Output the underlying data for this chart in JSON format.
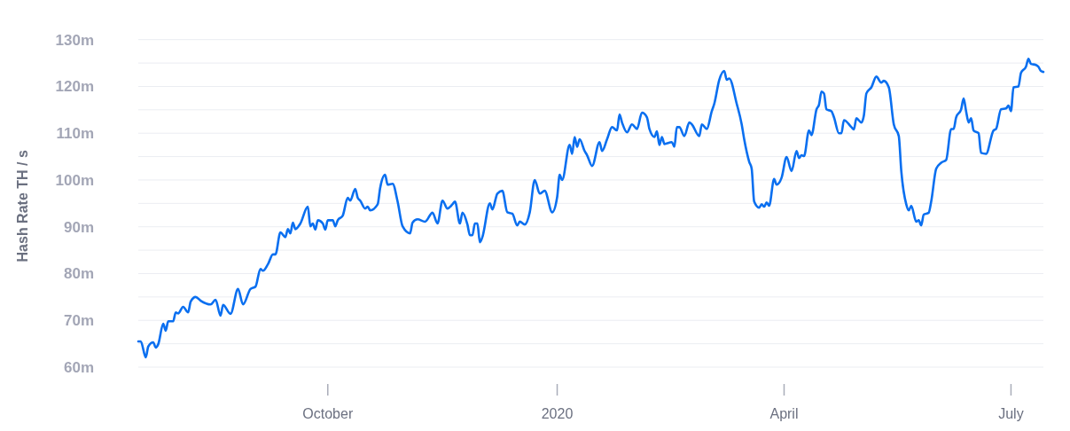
{
  "chart_data": {
    "type": "line",
    "ylabel": "Hash Rate TH / s",
    "grid": "y",
    "line_style": "solid",
    "xlim": [
      "2019-07-17",
      "2020-07-14"
    ],
    "xticks": [
      {
        "value": "2019-10-01",
        "label": "October"
      },
      {
        "value": "2020-01-01",
        "label": "2020"
      },
      {
        "value": "2020-04-01",
        "label": "April"
      },
      {
        "value": "2020-07-01",
        "label": "July"
      }
    ],
    "ylim": [
      60,
      130
    ],
    "yticks": [
      {
        "value": 60,
        "label": "60m"
      },
      {
        "value": 65,
        "label": null
      },
      {
        "value": 70,
        "label": "70m"
      },
      {
        "value": 75,
        "label": null
      },
      {
        "value": 80,
        "label": "80m"
      },
      {
        "value": 85,
        "label": null
      },
      {
        "value": 90,
        "label": "90m"
      },
      {
        "value": 95,
        "label": null
      },
      {
        "value": 100,
        "label": "100m"
      },
      {
        "value": 105,
        "label": null
      },
      {
        "value": 110,
        "label": "110m"
      },
      {
        "value": 115,
        "label": null
      },
      {
        "value": 120,
        "label": "120m"
      },
      {
        "value": 125,
        "label": null
      },
      {
        "value": 130,
        "label": "130m"
      }
    ],
    "x": [
      "2019-07-17",
      "2019-07-18",
      "2019-07-20",
      "2019-07-21",
      "2019-07-23",
      "2019-07-24",
      "2019-07-25",
      "2019-07-27",
      "2019-07-28",
      "2019-07-29",
      "2019-07-31",
      "2019-08-01",
      "2019-08-02",
      "2019-08-04",
      "2019-08-06",
      "2019-08-07",
      "2019-08-09",
      "2019-08-11",
      "2019-08-15",
      "2019-08-17",
      "2019-08-19",
      "2019-08-20",
      "2019-08-23",
      "2019-08-26",
      "2019-08-28",
      "2019-08-31",
      "2019-09-02",
      "2019-09-04",
      "2019-09-05",
      "2019-09-07",
      "2019-09-09",
      "2019-09-10",
      "2019-09-12",
      "2019-09-14",
      "2019-09-15",
      "2019-09-16",
      "2019-09-17",
      "2019-09-18",
      "2019-09-20",
      "2019-09-23",
      "2019-09-24",
      "2019-09-25",
      "2019-09-26",
      "2019-09-27",
      "2019-09-29",
      "2019-09-30",
      "2019-10-01",
      "2019-10-03",
      "2019-10-04",
      "2019-10-05",
      "2019-10-07",
      "2019-10-09",
      "2019-10-10",
      "2019-10-12",
      "2019-10-13",
      "2019-10-14",
      "2019-10-16",
      "2019-10-17",
      "2019-10-18",
      "2019-10-21",
      "2019-10-22",
      "2019-10-24",
      "2019-10-25",
      "2019-10-27",
      "2019-10-29",
      "2019-10-31",
      "2019-11-03",
      "2019-11-04",
      "2019-11-06",
      "2019-11-09",
      "2019-11-12",
      "2019-11-14",
      "2019-11-16",
      "2019-11-18",
      "2019-11-20",
      "2019-11-21",
      "2019-11-23",
      "2019-11-24",
      "2019-11-26",
      "2019-11-27",
      "2019-11-28",
      "2019-11-29",
      "2019-11-30",
      "2019-12-01",
      "2019-12-02",
      "2019-12-05",
      "2019-12-06",
      "2019-12-08",
      "2019-12-10",
      "2019-12-12",
      "2019-12-14",
      "2019-12-16",
      "2019-12-17",
      "2019-12-19",
      "2019-12-21",
      "2019-12-23",
      "2019-12-25",
      "2019-12-27",
      "2019-12-30",
      "2020-01-01",
      "2020-01-02",
      "2020-01-03",
      "2020-01-06",
      "2020-01-07",
      "2020-01-08",
      "2020-01-09",
      "2020-01-10",
      "2020-01-12",
      "2020-01-13",
      "2020-01-15",
      "2020-01-18",
      "2020-01-19",
      "2020-01-21",
      "2020-01-23",
      "2020-01-25",
      "2020-01-26",
      "2020-01-27",
      "2020-01-29",
      "2020-01-31",
      "2020-02-02",
      "2020-02-04",
      "2020-02-06",
      "2020-02-07",
      "2020-02-09",
      "2020-02-10",
      "2020-02-11",
      "2020-02-12",
      "2020-02-13",
      "2020-02-16",
      "2020-02-17",
      "2020-02-18",
      "2020-02-19",
      "2020-02-21",
      "2020-02-23",
      "2020-02-24",
      "2020-02-27",
      "2020-02-28",
      "2020-03-01",
      "2020-03-03",
      "2020-03-04",
      "2020-03-06",
      "2020-03-08",
      "2020-03-09",
      "2020-03-10",
      "2020-03-13",
      "2020-03-15",
      "2020-03-16",
      "2020-03-18",
      "2020-03-19",
      "2020-03-20",
      "2020-03-22",
      "2020-03-23",
      "2020-03-24",
      "2020-03-25",
      "2020-03-26",
      "2020-03-28",
      "2020-03-29",
      "2020-03-31",
      "2020-04-02",
      "2020-04-04",
      "2020-04-06",
      "2020-04-07",
      "2020-04-08",
      "2020-04-09",
      "2020-04-11",
      "2020-04-12",
      "2020-04-14",
      "2020-04-15",
      "2020-04-16",
      "2020-04-17",
      "2020-04-18",
      "2020-04-20",
      "2020-04-21",
      "2020-04-23",
      "2020-04-24",
      "2020-04-25",
      "2020-04-28",
      "2020-04-29",
      "2020-04-30",
      "2020-05-02",
      "2020-05-03",
      "2020-05-04",
      "2020-05-06",
      "2020-05-08",
      "2020-05-10",
      "2020-05-11",
      "2020-05-13",
      "2020-05-15",
      "2020-05-17",
      "2020-05-18",
      "2020-05-20",
      "2020-05-21",
      "2020-05-22",
      "2020-05-24",
      "2020-05-25",
      "2020-05-26",
      "2020-05-27",
      "2020-05-29",
      "2020-05-30",
      "2020-06-01",
      "2020-06-03",
      "2020-06-05",
      "2020-06-07",
      "2020-06-08",
      "2020-06-09",
      "2020-06-11",
      "2020-06-12",
      "2020-06-13",
      "2020-06-14",
      "2020-06-15",
      "2020-06-16",
      "2020-06-18",
      "2020-06-19",
      "2020-06-21",
      "2020-06-24",
      "2020-06-25",
      "2020-06-27",
      "2020-06-29",
      "2020-06-30",
      "2020-07-01",
      "2020-07-02",
      "2020-07-04",
      "2020-07-05",
      "2020-07-07",
      "2020-07-08",
      "2020-07-09",
      "2020-07-11",
      "2020-07-12",
      "2020-07-13",
      "2020-07-14"
    ],
    "series": [
      {
        "color": "#0a6ff0",
        "values": [
          65.5,
          65.5,
          62.1,
          64.4,
          65.3,
          64.2,
          64.9,
          69.3,
          67.8,
          69.8,
          69.8,
          71.7,
          71.5,
          72.9,
          71.7,
          74.0,
          75.0,
          74.2,
          73.4,
          74.4,
          71.0,
          73.3,
          71.4,
          76.7,
          73.4,
          76.7,
          77.2,
          81.0,
          80.6,
          82.0,
          84.1,
          84.1,
          88.8,
          87.8,
          89.5,
          88.6,
          90.9,
          89.5,
          90.7,
          94.3,
          90.1,
          90.7,
          89.4,
          91.4,
          90.7,
          89.4,
          91.4,
          91.4,
          90.1,
          91.4,
          92.4,
          96.2,
          95.6,
          98.1,
          96.2,
          95.6,
          93.9,
          94.3,
          93.5,
          94.8,
          98.3,
          101.1,
          99.0,
          99.2,
          95.4,
          90.1,
          88.6,
          90.9,
          91.6,
          91.1,
          93.0,
          90.7,
          95.6,
          93.9,
          94.8,
          95.4,
          90.7,
          93.0,
          90.5,
          88.2,
          88.2,
          90.7,
          90.7,
          86.7,
          87.8,
          95.0,
          93.7,
          97.1,
          97.7,
          93.1,
          92.8,
          90.3,
          91.1,
          90.5,
          93.1,
          100.0,
          97.1,
          97.7,
          93.1,
          96.4,
          101.1,
          100.0,
          107.5,
          105.6,
          109.2,
          107.1,
          108.7,
          106.2,
          105.3,
          103.0,
          108.1,
          106.2,
          108.7,
          111.3,
          110.6,
          114.0,
          112.3,
          110.2,
          111.9,
          110.9,
          114.4,
          113.4,
          110.9,
          109.2,
          110.4,
          107.5,
          109.2,
          107.7,
          108.1,
          107.1,
          111.3,
          111.3,
          109.4,
          112.3,
          111.9,
          109.4,
          111.9,
          110.9,
          114.7,
          116.3,
          121.4,
          123.3,
          121.4,
          121.7,
          116.3,
          111.9,
          108.7,
          103.9,
          102.4,
          95.4,
          94.1,
          94.8,
          94.3,
          95.2,
          94.5,
          100.2,
          99.0,
          100.5,
          104.9,
          101.9,
          106.2,
          104.7,
          105.3,
          105.1,
          110.6,
          109.6,
          115.1,
          116.1,
          118.9,
          118.5,
          115.1,
          114.7,
          113.4,
          110.0,
          110.0,
          112.8,
          111.3,
          110.8,
          113.2,
          112.3,
          113.8,
          118.5,
          119.8,
          122.1,
          120.8,
          121.2,
          119.8,
          111.9,
          109.4,
          101.9,
          94.8,
          93.5,
          94.5,
          91.1,
          91.4,
          90.3,
          92.6,
          93.0,
          95.4,
          102.4,
          103.7,
          104.3,
          110.9,
          110.9,
          113.4,
          115.1,
          117.4,
          114.7,
          112.3,
          113.2,
          110.6,
          110.0,
          105.8,
          105.6,
          110.6,
          110.9,
          115.1,
          115.3,
          115.9,
          114.7,
          119.8,
          120.0,
          122.9,
          124.2,
          125.9,
          124.8,
          124.6,
          124.2,
          123.3,
          123.1
        ]
      }
    ]
  }
}
